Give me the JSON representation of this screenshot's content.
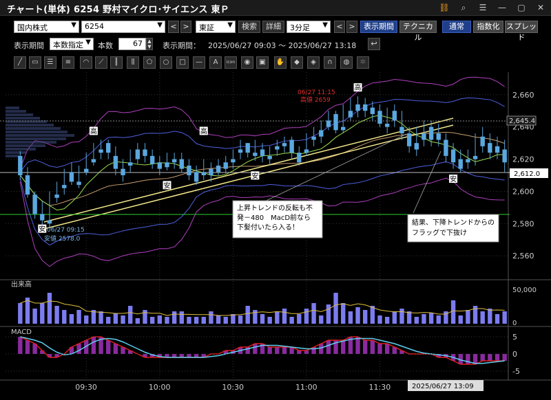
{
  "window": {
    "title": "チャート(単体) 6254 野村マイクロ･サイエンス 東Ｐ",
    "icons": [
      "link-icon",
      "search-icon",
      "grid-icon",
      "minimize-icon",
      "maximize-icon",
      "close-icon"
    ]
  },
  "toolbar1": {
    "market": "国内株式",
    "code": "6254",
    "prev": "<",
    "next": ">",
    "exchange": "東証",
    "search": "検索",
    "detail": "詳細",
    "interval": "3分足",
    "display_period_btn": "表示期間",
    "technical": "テクニカル",
    "normal": "通常",
    "index": "指数化",
    "spread": "スプレッド"
  },
  "toolbar2": {
    "period_label": "表示期間",
    "period_mode": "本数指定",
    "count_label": "本数",
    "count_value": "67",
    "range_label": "表示期間：",
    "range_value": "2025/06/27 09:03 ～ 2025/06/27 13:18"
  },
  "drawing_tools": [
    "line-tool-icon",
    "ruler-tool-icon",
    "channel-tool-icon",
    "hline-tool-icon",
    "arc-tool-icon",
    "fan-tool-icon",
    "fib-tool-icon",
    "pitchfork-tool-icon",
    "polygon-tool-icon",
    "circle-tool-icon",
    "rect-tool-icon",
    "dash-tool-icon",
    "text-tool-icon",
    "icon-tool-icon",
    "marker-tool-icon",
    "stamp-tool-icon",
    "hand-tool-icon",
    "eraser-tool-icon",
    "erase-all-tool-icon",
    "magnet-tool-icon",
    "paint-tool-icon",
    "settings-tool-icon"
  ],
  "chart_labels": {
    "text_tool": "A",
    "icon_tool": "icon",
    "high_label_top": "06/27 11:15",
    "high_value": "高値 2659",
    "low_label": "06/27 09:15",
    "low_value": "安値 2578.0",
    "current_price": "2,612.0",
    "line_price": "2,645.4",
    "annotation1": [
      "上昇トレンドの反転も不",
      "発－480　MacD前なら",
      "下髪付いたら入る！"
    ],
    "annotation2": [
      "結果、下降トレンドからの",
      "フラッグで下抜け"
    ],
    "marker_high": "高",
    "marker_low": "安",
    "volume_title": "出来高",
    "macd_title": "MACD",
    "cursor_time": "2025/06/27 13:09"
  },
  "chart_data": {
    "type": "candlestick",
    "y_ticks": [
      2660,
      2640,
      2620,
      2600,
      2580,
      2560
    ],
    "y_tick_labels": [
      "2,660",
      "2,640",
      "2,620",
      "2,600",
      "2,580",
      "2,560"
    ],
    "ylim": [
      2546,
      2674
    ],
    "volume_ticks": [
      "50,000",
      "0"
    ],
    "macd_ticks": [
      "5",
      "0",
      "-5"
    ],
    "x_tick_labels": [
      "09:30",
      "10:00",
      "10:30",
      "11:00",
      "11:30"
    ],
    "candles": [
      [
        2622,
        2625,
        2610,
        2607
      ],
      [
        2610,
        2615,
        2598,
        2596
      ],
      [
        2598,
        2600,
        2586,
        2583
      ],
      [
        2586,
        2594,
        2582,
        2579
      ],
      [
        2582,
        2600,
        2580,
        2578
      ],
      [
        2598,
        2606,
        2596,
        2593
      ],
      [
        2604,
        2614,
        2602,
        2598
      ],
      [
        2612,
        2618,
        2606,
        2604
      ],
      [
        2606,
        2616,
        2604,
        2602
      ],
      [
        2614,
        2624,
        2612,
        2610
      ],
      [
        2620,
        2630,
        2618,
        2616
      ],
      [
        2626,
        2632,
        2624,
        2620
      ],
      [
        2630,
        2632,
        2624,
        2620
      ],
      [
        2622,
        2628,
        2614,
        2610
      ],
      [
        2614,
        2620,
        2610,
        2606
      ],
      [
        2618,
        2626,
        2616,
        2612
      ],
      [
        2626,
        2630,
        2620,
        2617
      ],
      [
        2626,
        2630,
        2622,
        2618
      ],
      [
        2622,
        2626,
        2617,
        2614
      ],
      [
        2618,
        2622,
        2614,
        2610
      ],
      [
        2618,
        2624,
        2615,
        2613
      ],
      [
        2620,
        2624,
        2618,
        2614
      ],
      [
        2620,
        2624,
        2614,
        2612
      ],
      [
        2616,
        2620,
        2610,
        2607
      ],
      [
        2612,
        2616,
        2606,
        2604
      ],
      [
        2612,
        2620,
        2610,
        2607
      ],
      [
        2614,
        2618,
        2610,
        2606
      ],
      [
        2616,
        2620,
        2612,
        2610
      ],
      [
        2618,
        2622,
        2614,
        2611
      ],
      [
        2620,
        2626,
        2618,
        2614
      ],
      [
        2626,
        2632,
        2624,
        2620
      ],
      [
        2630,
        2630,
        2624,
        2621
      ],
      [
        2624,
        2632,
        2622,
        2619
      ],
      [
        2626,
        2630,
        2622,
        2618
      ],
      [
        2622,
        2628,
        2620,
        2616
      ],
      [
        2628,
        2632,
        2626,
        2622
      ],
      [
        2630,
        2634,
        2628,
        2624
      ],
      [
        2632,
        2634,
        2624,
        2620
      ],
      [
        2624,
        2628,
        2618,
        2616
      ],
      [
        2626,
        2636,
        2624,
        2622
      ],
      [
        2634,
        2640,
        2632,
        2628
      ],
      [
        2638,
        2644,
        2634,
        2630
      ],
      [
        2644,
        2650,
        2640,
        2638
      ],
      [
        2648,
        2650,
        2638,
        2636
      ],
      [
        2640,
        2654,
        2638,
        2636
      ],
      [
        2650,
        2658,
        2646,
        2644
      ],
      [
        2654,
        2659,
        2650,
        2646
      ],
      [
        2654,
        2658,
        2650,
        2646
      ],
      [
        2652,
        2656,
        2648,
        2644
      ],
      [
        2650,
        2654,
        2642,
        2640
      ],
      [
        2642,
        2652,
        2640,
        2636
      ],
      [
        2650,
        2654,
        2644,
        2640
      ],
      [
        2640,
        2650,
        2636,
        2632
      ],
      [
        2636,
        2640,
        2628,
        2624
      ],
      [
        2630,
        2640,
        2626,
        2622
      ],
      [
        2636,
        2644,
        2632,
        2628
      ],
      [
        2640,
        2644,
        2632,
        2628
      ],
      [
        2636,
        2642,
        2632,
        2628
      ],
      [
        2632,
        2636,
        2622,
        2618
      ],
      [
        2626,
        2630,
        2618,
        2614
      ],
      [
        2620,
        2626,
        2614,
        2612
      ],
      [
        2620,
        2626,
        2618,
        2614
      ],
      [
        2622,
        2636,
        2620,
        2616
      ],
      [
        2634,
        2640,
        2628,
        2624
      ],
      [
        2630,
        2636,
        2624,
        2620
      ],
      [
        2628,
        2634,
        2624,
        2620
      ],
      [
        2626,
        2632,
        2618,
        2612
      ]
    ],
    "volume": [
      30,
      38,
      22,
      30,
      45,
      26,
      20,
      14,
      20,
      12,
      20,
      18,
      10,
      15,
      12,
      26,
      8,
      20,
      10,
      12,
      10,
      18,
      18,
      10,
      10,
      10,
      18,
      12,
      10,
      14,
      12,
      26,
      20,
      14,
      10,
      18,
      22,
      10,
      14,
      22,
      30,
      12,
      28,
      45,
      30,
      18,
      24,
      20,
      26,
      12,
      10,
      18,
      22,
      18,
      10,
      14,
      16,
      12,
      18,
      34,
      12,
      20,
      26,
      18,
      22,
      14,
      18
    ],
    "macd": [
      5,
      4,
      3,
      1,
      -1,
      -1,
      0,
      2,
      3,
      4,
      5,
      5,
      4,
      3,
      2,
      1,
      0,
      -1,
      -1,
      -1,
      -1,
      -1,
      -1,
      -1,
      -1,
      -1,
      0,
      0,
      1,
      1,
      2,
      2,
      3,
      3,
      2,
      2,
      2,
      2,
      1,
      1,
      2,
      3,
      4,
      4,
      4,
      5,
      5,
      4,
      4,
      3,
      3,
      2,
      1,
      0,
      0,
      0,
      0,
      -1,
      -1,
      -2,
      -3,
      -3,
      -3,
      -2,
      -2,
      -2,
      -2
    ]
  }
}
